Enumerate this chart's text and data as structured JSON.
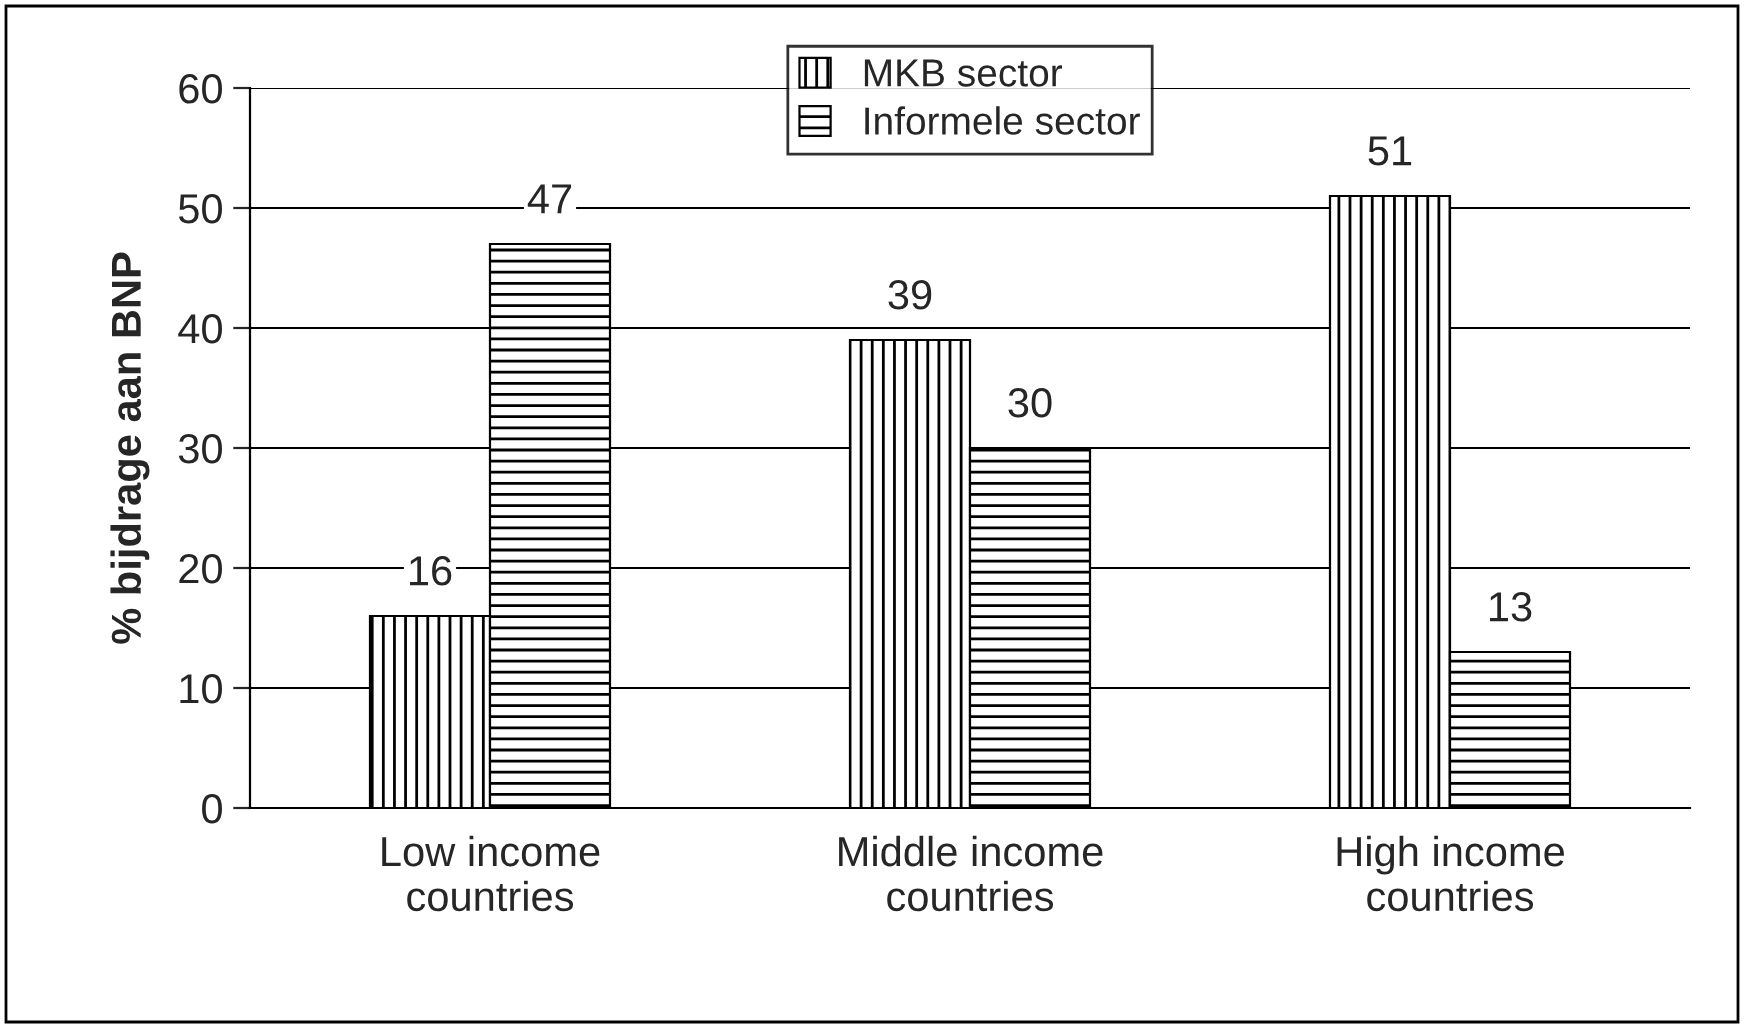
{
  "chart_data": {
    "type": "bar",
    "ylabel": "% bijdrage aan BNP",
    "categories": [
      "Low income\ncountries",
      "Middle income\ncountries",
      "High income\ncountries"
    ],
    "series": [
      {
        "name": "MKB sector",
        "color": "#000000",
        "values": [
          16,
          39,
          51
        ]
      },
      {
        "name": "Informele sector",
        "color": "#000000",
        "values": [
          47,
          30,
          13
        ]
      }
    ],
    "ylim": [
      0,
      60
    ],
    "yticks": [
      0,
      10,
      20,
      30,
      40,
      50,
      60
    ],
    "grid": "y",
    "legend": "top",
    "data_labels": true
  }
}
